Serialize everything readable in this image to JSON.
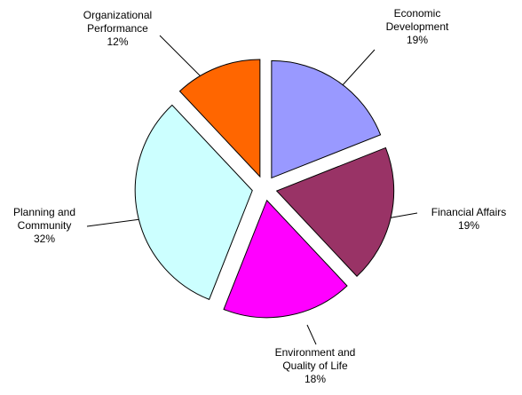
{
  "chart_data": {
    "type": "pie",
    "categories": [
      "Economic Development",
      "Financial Affairs",
      "Environment and Quality of Life",
      "Planning and Community",
      "Organizational Performance"
    ],
    "values": [
      19,
      19,
      18,
      32,
      12
    ],
    "value_labels": [
      "19%",
      "19%",
      "18%",
      "32%",
      "12%"
    ],
    "colors": [
      "#9999ff",
      "#993366",
      "#ff00ff",
      "#ccffff",
      "#ff6600"
    ]
  }
}
